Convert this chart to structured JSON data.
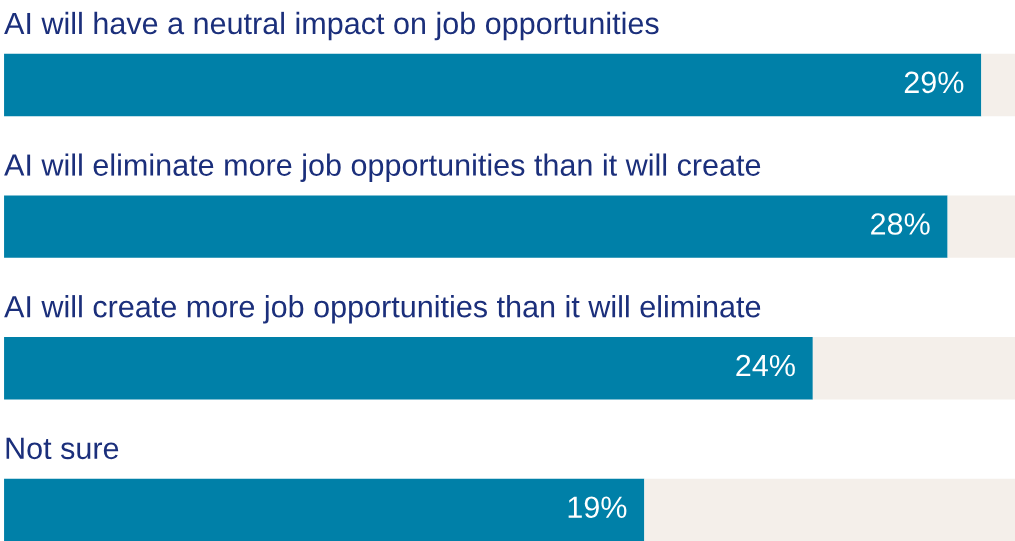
{
  "chart_data": {
    "type": "bar",
    "orientation": "horizontal",
    "stacked": true,
    "categories": [
      "AI will have a neutral impact on job opportunities",
      "AI will eliminate more job opportunities than it will create",
      "AI will create more job opportunities than it will eliminate",
      "Not sure"
    ],
    "series": [
      {
        "color": "#0080a8",
        "values": [
          29,
          28,
          24,
          19
        ],
        "value_labels": [
          "29%",
          "28%",
          "24%",
          "19%"
        ]
      },
      {
        "color": "#f4efea",
        "values": [
          1,
          2,
          6,
          11
        ]
      }
    ],
    "xlim": [
      0,
      30
    ]
  }
}
